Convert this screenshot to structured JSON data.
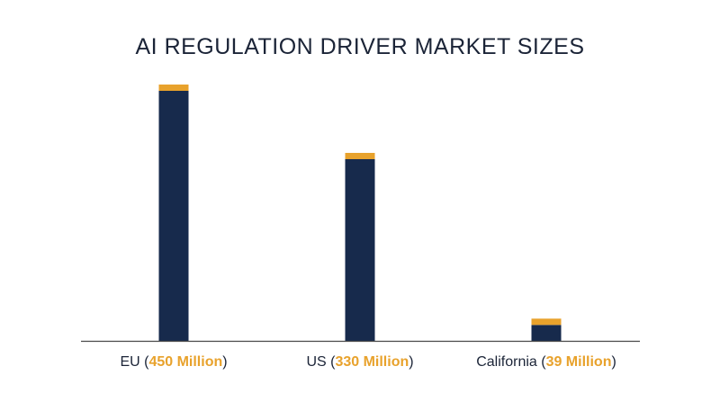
{
  "chart_data": {
    "type": "bar",
    "title": "AI REGULATION DRIVER MARKET SIZES",
    "categories": [
      "EU",
      "US",
      "California"
    ],
    "values": [
      450,
      330,
      39
    ],
    "value_labels": [
      "450 Million",
      "330 Million",
      "39 Million"
    ],
    "xlabel": "",
    "ylabel": "",
    "ylim": [
      0,
      480
    ],
    "grid": false,
    "legend": "none",
    "colors": {
      "bar": "#172a4c",
      "cap": "#e8a22c",
      "accent_text": "#e8a22c",
      "text": "#1b2437",
      "axis": "#4a4a4a"
    }
  }
}
